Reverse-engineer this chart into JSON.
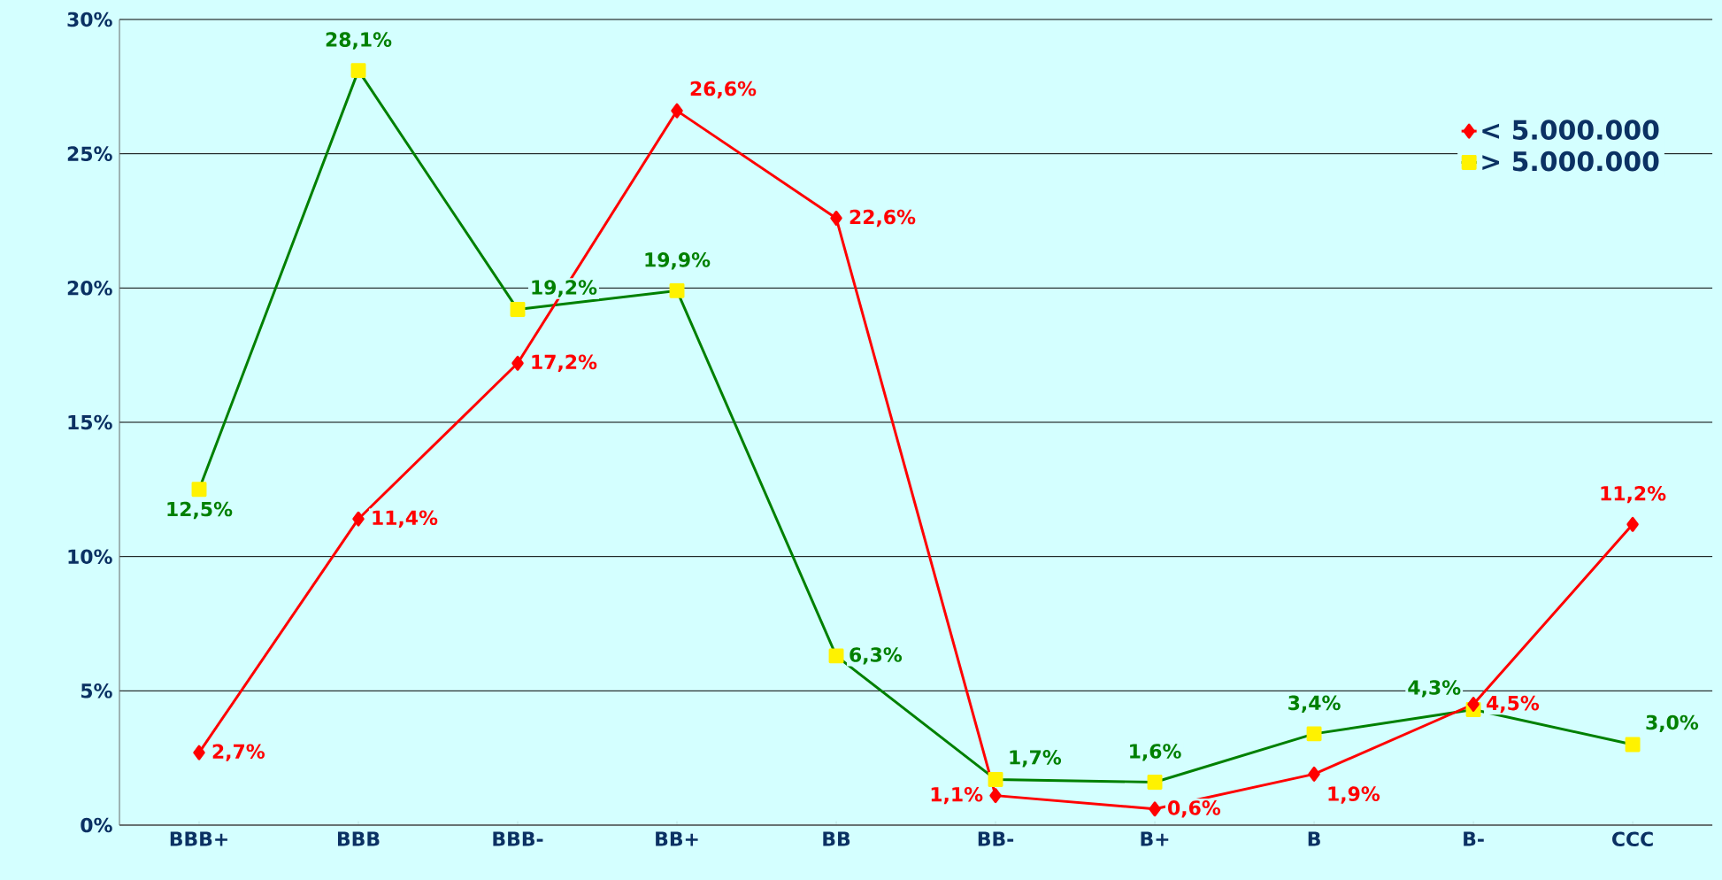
{
  "chart_data": {
    "type": "line",
    "categories": [
      "BBB+",
      "BBB",
      "BBB-",
      "BB+",
      "BB",
      "BB-",
      "B+",
      "B",
      "B-",
      "CCC"
    ],
    "series": [
      {
        "name": "< 5.000.000",
        "color": "#ff0000",
        "marker": "diamond",
        "values": [
          2.7,
          11.4,
          17.2,
          26.6,
          22.6,
          1.1,
          0.6,
          1.9,
          4.5,
          11.2
        ],
        "value_labels": [
          "2,7%",
          "11,4%",
          "17,2%",
          "26,6%",
          "22,6%",
          "1,1%",
          "0,6%",
          "1,9%",
          "4,5%",
          "11,2%"
        ]
      },
      {
        "name": "> 5.000.000",
        "color": "#008000",
        "marker": "square",
        "values": [
          12.5,
          28.1,
          19.2,
          19.9,
          6.3,
          1.7,
          1.6,
          3.4,
          4.3,
          3.0
        ],
        "value_labels": [
          "12,5%",
          "28,1%",
          "19,2%",
          "19,9%",
          "6,3%",
          "1,7%",
          "1,6%",
          "3,4%",
          "4,3%",
          "3,0%"
        ]
      }
    ],
    "ylim": [
      0,
      30
    ],
    "yticks": [
      {
        "value": 0,
        "label": "0%"
      },
      {
        "value": 5,
        "label": "5%"
      },
      {
        "value": 10,
        "label": "10%"
      },
      {
        "value": 15,
        "label": "15%"
      },
      {
        "value": 20,
        "label": "20%"
      },
      {
        "value": 25,
        "label": "25%"
      },
      {
        "value": 30,
        "label": "30%"
      }
    ],
    "grid": "y",
    "legend": "top right",
    "line_style": "solid"
  }
}
